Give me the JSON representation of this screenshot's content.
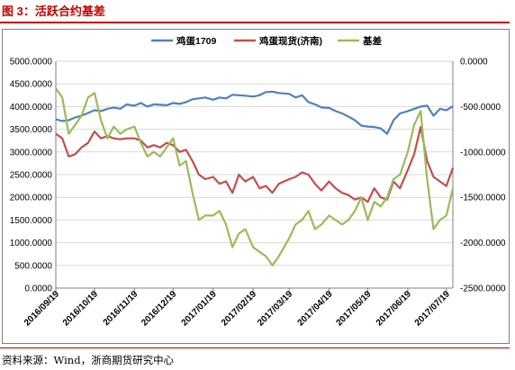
{
  "header": {
    "title": "图 3：活跃合约基差"
  },
  "footer": {
    "source": "资料来源：Wind，浙商期货研究中心"
  },
  "colors": {
    "title": "#c00000",
    "egg_futures": "#4f81bd",
    "egg_spot": "#c0504d",
    "basis": "#9bbb59"
  },
  "chart_data": {
    "type": "line",
    "title": "",
    "x_ticks": [
      "2016/09/19",
      "2016/10/19",
      "2016/11/19",
      "2016/12/19",
      "2017/01/19",
      "2017/02/19",
      "2017/03/19",
      "2017/04/19",
      "2017/05/19",
      "2017/06/19",
      "2017/07/19"
    ],
    "x_range": [
      "2016/09/19",
      "2017/07/24"
    ],
    "y_left": {
      "min": 0,
      "max": 5000,
      "step": 500,
      "tick_labels": [
        "0.0000",
        "500.0000",
        "1000.0000",
        "1500.0000",
        "2000.0000",
        "2500.0000",
        "3000.0000",
        "3500.0000",
        "4000.0000",
        "4500.0000",
        "5000.0000"
      ]
    },
    "y_right": {
      "min": -2500,
      "max": 0,
      "step": 500,
      "tick_labels": [
        "-2500.0000",
        "-2000.0000",
        "-1500.0000",
        "-1000.0000",
        "-500.0000",
        "0.0000"
      ]
    },
    "grid": "horizontal",
    "legend_position": "top",
    "series": [
      {
        "name": "鸡蛋1709",
        "color_key": "egg_futures",
        "axis": "left",
        "x": [
          "2016/09/19",
          "2016/09/24",
          "2016/09/29",
          "2016/10/04",
          "2016/10/09",
          "2016/10/14",
          "2016/10/19",
          "2016/10/24",
          "2016/10/29",
          "2016/11/03",
          "2016/11/08",
          "2016/11/13",
          "2016/11/19",
          "2016/11/24",
          "2016/11/29",
          "2016/12/04",
          "2016/12/09",
          "2016/12/14",
          "2016/12/19",
          "2016/12/24",
          "2016/12/29",
          "2017/01/03",
          "2017/01/08",
          "2017/01/13",
          "2017/01/19",
          "2017/01/24",
          "2017/01/29",
          "2017/02/03",
          "2017/02/08",
          "2017/02/13",
          "2017/02/19",
          "2017/02/24",
          "2017/03/01",
          "2017/03/06",
          "2017/03/11",
          "2017/03/19",
          "2017/03/24",
          "2017/03/29",
          "2017/04/03",
          "2017/04/08",
          "2017/04/13",
          "2017/04/19",
          "2017/04/24",
          "2017/04/29",
          "2017/05/04",
          "2017/05/09",
          "2017/05/14",
          "2017/05/19",
          "2017/05/24",
          "2017/05/29",
          "2017/06/03",
          "2017/06/08",
          "2017/06/13",
          "2017/06/19",
          "2017/06/24",
          "2017/06/29",
          "2017/07/04",
          "2017/07/09",
          "2017/07/14",
          "2017/07/19",
          "2017/07/24"
        ],
        "values": [
          3720,
          3680,
          3700,
          3760,
          3800,
          3860,
          3920,
          3900,
          3950,
          3980,
          3950,
          4050,
          4020,
          4080,
          4000,
          4050,
          4040,
          4030,
          4080,
          4060,
          4100,
          4160,
          4180,
          4200,
          4150,
          4200,
          4180,
          4260,
          4250,
          4240,
          4220,
          4250,
          4320,
          4330,
          4300,
          4280,
          4200,
          4250,
          4100,
          4050,
          3980,
          3970,
          3900,
          3850,
          3780,
          3700,
          3580,
          3560,
          3550,
          3520,
          3400,
          3700,
          3850,
          3900,
          3950,
          4000,
          4020,
          3800,
          3950,
          3920,
          4010
        ]
      },
      {
        "name": "鸡蛋现货(济南)",
        "color_key": "egg_spot",
        "axis": "left",
        "x": [
          "2016/09/19",
          "2016/09/24",
          "2016/09/29",
          "2016/10/04",
          "2016/10/09",
          "2016/10/14",
          "2016/10/19",
          "2016/10/24",
          "2016/10/29",
          "2016/11/03",
          "2016/11/08",
          "2016/11/13",
          "2016/11/19",
          "2016/11/24",
          "2016/11/29",
          "2016/12/04",
          "2016/12/09",
          "2016/12/14",
          "2016/12/19",
          "2016/12/24",
          "2016/12/29",
          "2017/01/03",
          "2017/01/08",
          "2017/01/13",
          "2017/01/19",
          "2017/01/24",
          "2017/01/29",
          "2017/02/03",
          "2017/02/08",
          "2017/02/13",
          "2017/02/19",
          "2017/02/24",
          "2017/03/01",
          "2017/03/06",
          "2017/03/11",
          "2017/03/19",
          "2017/03/24",
          "2017/03/29",
          "2017/04/03",
          "2017/04/08",
          "2017/04/13",
          "2017/04/19",
          "2017/04/24",
          "2017/04/29",
          "2017/05/04",
          "2017/05/09",
          "2017/05/14",
          "2017/05/19",
          "2017/05/24",
          "2017/05/29",
          "2017/06/03",
          "2017/06/08",
          "2017/06/13",
          "2017/06/19",
          "2017/06/24",
          "2017/06/29",
          "2017/07/04",
          "2017/07/09",
          "2017/07/14",
          "2017/07/19",
          "2017/07/24"
        ],
        "values": [
          3400,
          3300,
          2900,
          2950,
          3100,
          3200,
          3450,
          3300,
          3350,
          3300,
          3280,
          3300,
          3300,
          3250,
          3100,
          3150,
          3100,
          3200,
          3150,
          3000,
          3050,
          2800,
          2500,
          2400,
          2450,
          2300,
          2350,
          2100,
          2500,
          2350,
          2450,
          2200,
          2250,
          2100,
          2300,
          2400,
          2450,
          2550,
          2500,
          2300,
          2150,
          2350,
          2200,
          2100,
          2050,
          1950,
          2000,
          1900,
          2200,
          2000,
          1950,
          2350,
          2200,
          2600,
          2950,
          3550,
          2800,
          2450,
          2350,
          2250,
          2650
        ]
      },
      {
        "name": "基差",
        "color_key": "basis",
        "axis": "right",
        "x": [
          "2016/09/19",
          "2016/09/24",
          "2016/09/29",
          "2016/10/04",
          "2016/10/09",
          "2016/10/14",
          "2016/10/19",
          "2016/10/24",
          "2016/10/29",
          "2016/11/03",
          "2016/11/08",
          "2016/11/13",
          "2016/11/19",
          "2016/11/24",
          "2016/11/29",
          "2016/12/04",
          "2016/12/09",
          "2016/12/14",
          "2016/12/19",
          "2016/12/24",
          "2016/12/29",
          "2017/01/03",
          "2017/01/08",
          "2017/01/13",
          "2017/01/19",
          "2017/01/24",
          "2017/01/29",
          "2017/02/03",
          "2017/02/08",
          "2017/02/13",
          "2017/02/19",
          "2017/02/24",
          "2017/03/01",
          "2017/03/06",
          "2017/03/11",
          "2017/03/19",
          "2017/03/24",
          "2017/03/29",
          "2017/04/03",
          "2017/04/08",
          "2017/04/13",
          "2017/04/19",
          "2017/04/24",
          "2017/04/29",
          "2017/05/04",
          "2017/05/09",
          "2017/05/14",
          "2017/05/19",
          "2017/05/24",
          "2017/05/29",
          "2017/06/03",
          "2017/06/08",
          "2017/06/13",
          "2017/06/19",
          "2017/06/24",
          "2017/06/29",
          "2017/07/04",
          "2017/07/09",
          "2017/07/14",
          "2017/07/19",
          "2017/07/24"
        ],
        "values": [
          -300,
          -400,
          -800,
          -700,
          -600,
          -400,
          -350,
          -650,
          -850,
          -720,
          -800,
          -750,
          -720,
          -900,
          -1050,
          -1000,
          -1050,
          -950,
          -850,
          -1150,
          -1100,
          -1450,
          -1750,
          -1700,
          -1700,
          -1650,
          -1800,
          -2050,
          -1900,
          -1850,
          -2050,
          -2100,
          -2150,
          -2250,
          -2150,
          -1950,
          -1800,
          -1750,
          -1650,
          -1850,
          -1800,
          -1700,
          -1750,
          -1800,
          -1750,
          -1650,
          -1500,
          -1750,
          -1550,
          -1600,
          -1500,
          -1300,
          -1250,
          -1000,
          -700,
          -550,
          -1300,
          -1850,
          -1750,
          -1700,
          -1400
        ]
      }
    ]
  }
}
